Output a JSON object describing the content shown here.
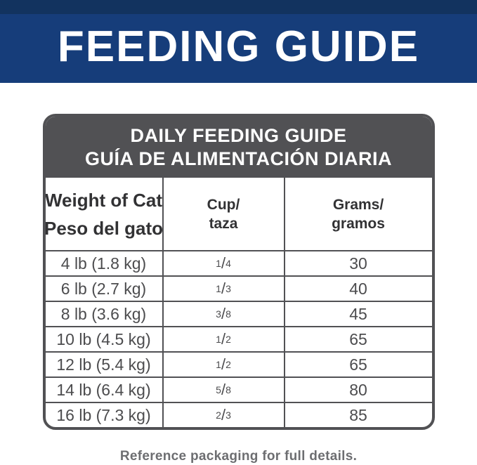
{
  "banner": {
    "title": "FEEDING GUIDE"
  },
  "table": {
    "title_en": "DAILY FEEDING GUIDE",
    "title_es": "GUÍA DE ALIMENTACIÓN DIARIA",
    "fraction_slash": "/",
    "columns": [
      {
        "line1": "Weight of Cat",
        "line2": "Peso del gato"
      },
      {
        "line1": "Cup/",
        "line2": "taza"
      },
      {
        "line1": "Grams/",
        "line2": "gramos"
      }
    ],
    "rows": [
      {
        "weight": "4 lb (1.8 kg)",
        "cup_num": "1",
        "cup_den": "4",
        "grams": "30"
      },
      {
        "weight": "6 lb (2.7 kg)",
        "cup_num": "1",
        "cup_den": "3",
        "grams": "40"
      },
      {
        "weight": "8 lb (3.6 kg)",
        "cup_num": "3",
        "cup_den": "8",
        "grams": "45"
      },
      {
        "weight": "10 lb (4.5 kg)",
        "cup_num": "1",
        "cup_den": "2",
        "grams": "65"
      },
      {
        "weight": "12 lb (5.4 kg)",
        "cup_num": "1",
        "cup_den": "2",
        "grams": "65"
      },
      {
        "weight": "14 lb (6.4 kg)",
        "cup_num": "5",
        "cup_den": "8",
        "grams": "80"
      },
      {
        "weight": "16 lb (7.3 kg)",
        "cup_num": "2",
        "cup_den": "3",
        "grams": "85"
      }
    ]
  },
  "footer": {
    "note": "Reference packaging for full details."
  },
  "colors": {
    "banner_bg": "#163D7A",
    "banner_top_strip": "#12335F",
    "table_gray": "#515154",
    "heading_text": "#323234",
    "data_text": "#4C4C4E",
    "footer_text": "#6D6E71"
  },
  "chart_data": {
    "type": "table",
    "title": "DAILY FEEDING GUIDE / GUÍA DE ALIMENTACIÓN DIARIA",
    "columns": [
      "Weight of Cat / Peso del gato",
      "Cup / taza",
      "Grams / gramos"
    ],
    "rows": [
      [
        "4 lb (1.8 kg)",
        "1/4",
        30
      ],
      [
        "6 lb (2.7 kg)",
        "1/3",
        40
      ],
      [
        "8 lb (3.6 kg)",
        "3/8",
        45
      ],
      [
        "10 lb (4.5 kg)",
        "1/2",
        65
      ],
      [
        "12 lb (5.4 kg)",
        "1/2",
        65
      ],
      [
        "14 lb (6.4 kg)",
        "5/8",
        80
      ],
      [
        "16 lb (7.3 kg)",
        "2/3",
        85
      ]
    ]
  }
}
